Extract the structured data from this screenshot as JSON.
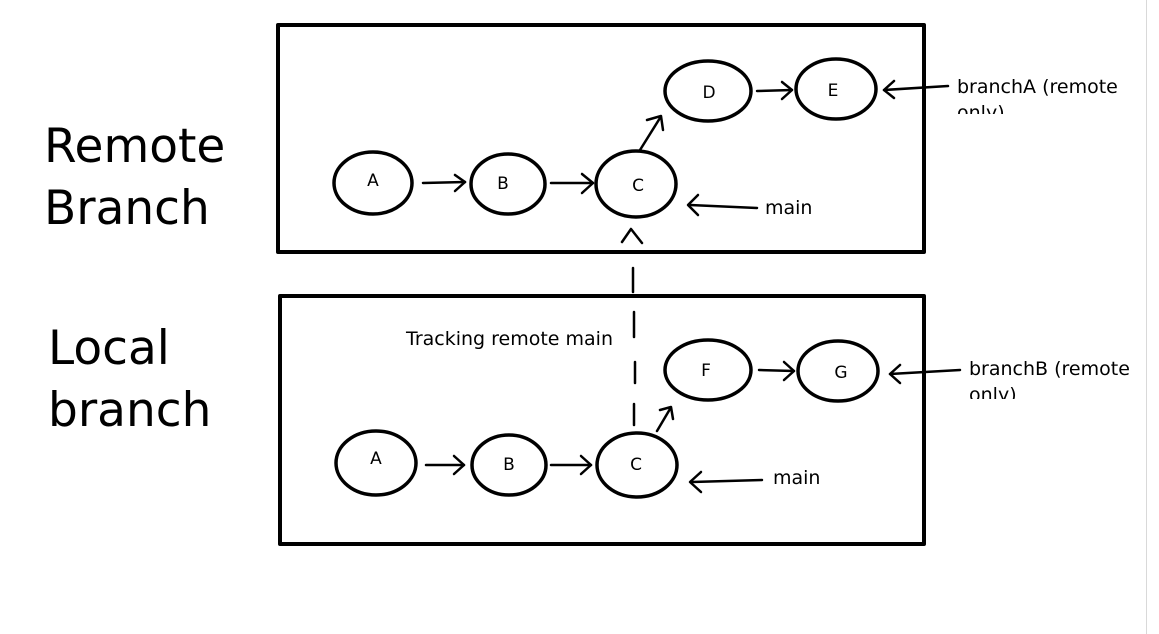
{
  "remote": {
    "title_line1": "Remote",
    "title_line2": "Branch",
    "commits": [
      "A",
      "B",
      "C",
      "D",
      "E"
    ],
    "main_label": "main",
    "branch_label_line1": "branchA (remote",
    "branch_label_line2": "only)"
  },
  "local": {
    "title_line1": "Local",
    "title_line2": "branch",
    "commits": [
      "A",
      "B",
      "C",
      "F",
      "G"
    ],
    "main_label": "main",
    "branch_label_line1": "branchB (remote",
    "branch_label_line2": "only)",
    "tracking_label": "Tracking remote main"
  }
}
